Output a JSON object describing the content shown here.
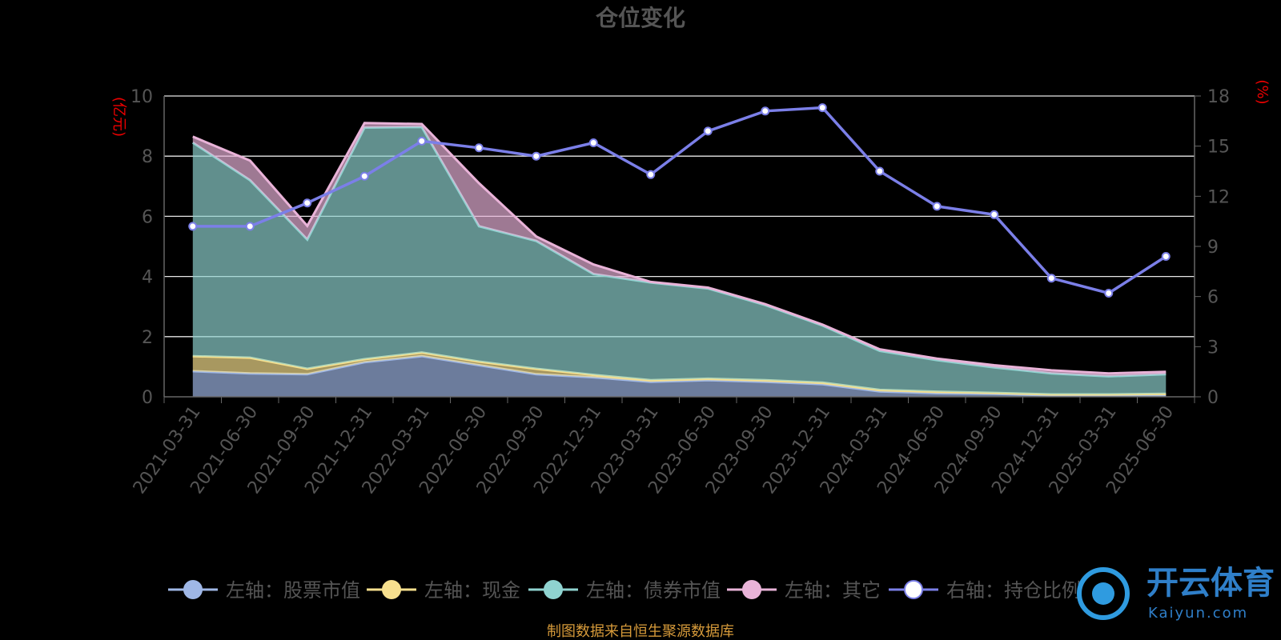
{
  "colors": {
    "stock": "#9fb7e6",
    "cash": "#f7e08e",
    "bond": "#8fd3d0",
    "other": "#e9b3d8",
    "ratio": "#7b7fe8",
    "grid": "#e6e6e6",
    "axis": "#666666"
  },
  "chart_data": {
    "type": "area",
    "title": "仓位变化",
    "left_unit": "(亿元)",
    "right_unit": "(%)",
    "categories": [
      "2021-03-31",
      "2021-06-30",
      "2021-09-30",
      "2021-12-31",
      "2022-03-31",
      "2022-06-30",
      "2022-09-30",
      "2022-12-31",
      "2023-03-31",
      "2023-06-30",
      "2023-09-30",
      "2023-12-31",
      "2024-03-31",
      "2024-06-30",
      "2024-09-30",
      "2024-12-31",
      "2025-03-31",
      "2025-06-30"
    ],
    "left_ylim": [
      0,
      10
    ],
    "left_ticks": [
      "0",
      "2",
      "4",
      "6",
      "8",
      "10"
    ],
    "right_ylim": [
      0,
      18
    ],
    "right_ticks": [
      "0",
      "3",
      "6",
      "9",
      "12",
      "15",
      "18"
    ],
    "grid": true,
    "legend_position": "bottom",
    "series": [
      {
        "name": "左轴：股票市值",
        "key": "stock",
        "axis": "left",
        "type": "area",
        "values": [
          0.85,
          0.78,
          0.75,
          1.15,
          1.35,
          1.05,
          0.75,
          0.65,
          0.5,
          0.55,
          0.5,
          0.42,
          0.18,
          0.12,
          0.1,
          0.05,
          0.05,
          0.05
        ]
      },
      {
        "name": "左轴：现金",
        "key": "cash",
        "axis": "left",
        "type": "area",
        "values": [
          0.5,
          0.52,
          0.18,
          0.1,
          0.12,
          0.12,
          0.18,
          0.08,
          0.05,
          0.05,
          0.05,
          0.05,
          0.05,
          0.05,
          0.03,
          0.03,
          0.03,
          0.05
        ]
      },
      {
        "name": "左轴：债券市值",
        "key": "bond",
        "axis": "left",
        "type": "area",
        "values": [
          7.1,
          5.9,
          4.3,
          7.7,
          7.5,
          4.5,
          4.25,
          3.35,
          3.25,
          3.0,
          2.5,
          1.9,
          1.3,
          1.05,
          0.85,
          0.7,
          0.6,
          0.65
        ]
      },
      {
        "name": "左轴：其它",
        "key": "other",
        "axis": "left",
        "type": "area",
        "values": [
          0.2,
          0.65,
          0.45,
          0.15,
          0.1,
          1.43,
          0.15,
          0.32,
          0.02,
          0.03,
          0.03,
          0.03,
          0.05,
          0.05,
          0.07,
          0.1,
          0.1,
          0.08
        ]
      },
      {
        "name": "右轴：持仓比例",
        "key": "ratio",
        "axis": "right",
        "type": "line",
        "values": [
          10.2,
          10.2,
          11.6,
          13.2,
          15.3,
          14.9,
          14.4,
          15.2,
          13.3,
          15.9,
          17.1,
          17.3,
          13.5,
          11.4,
          10.9,
          7.1,
          6.2,
          8.4
        ]
      }
    ]
  },
  "footer": {
    "source": "制图数据来自恒生聚源数据库"
  },
  "watermark": {
    "brand": "开云体育",
    "domain": "Kaiyun.com"
  }
}
